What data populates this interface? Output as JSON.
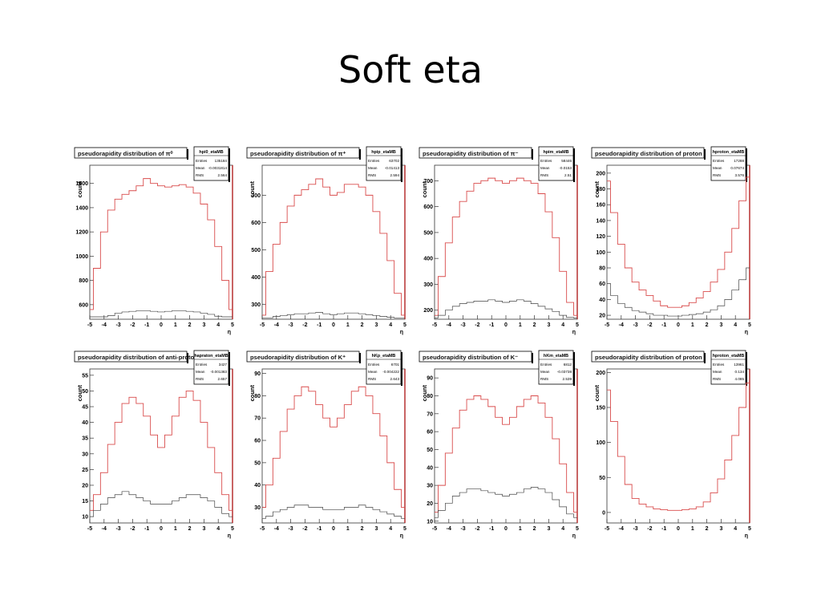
{
  "slide": {
    "title": "Soft eta"
  },
  "chart_data": [
    {
      "type": "histogram",
      "title": "pseudorapidity distribution of π⁰",
      "stats": {
        "name": "hpi0_etaMB",
        "entries": "135184",
        "mean": "-0.0031814",
        "rms": "2.564"
      },
      "xlabel": "η",
      "ylabel": "count",
      "xlim": [
        -5,
        5
      ],
      "ylim": [
        480,
        1750
      ],
      "xticks": [
        -5,
        -4,
        -3,
        -2,
        -1,
        0,
        1,
        2,
        3,
        4,
        5
      ],
      "yticks": [
        600,
        800,
        1000,
        1200,
        1400,
        1600
      ],
      "series": [
        {
          "color": "#d94c4c",
          "x": [
            -5,
            -4.5,
            -4,
            -3.5,
            -3,
            -2.5,
            -2,
            -1.5,
            -1,
            -0.5,
            0,
            0.5,
            1,
            1.5,
            2,
            2.5,
            3,
            3.5,
            4,
            4.5,
            5
          ],
          "y": [
            560,
            900,
            1200,
            1380,
            1470,
            1510,
            1540,
            1580,
            1640,
            1600,
            1580,
            1570,
            1580,
            1590,
            1570,
            1520,
            1430,
            1300,
            1080,
            800,
            560
          ]
        },
        {
          "color": "#444444",
          "x": [
            -5,
            -4.5,
            -4,
            -3.5,
            -3,
            -2.5,
            -2,
            -1.5,
            -1,
            -0.5,
            0,
            0.5,
            1,
            1.5,
            2,
            2.5,
            3,
            3.5,
            4,
            4.5,
            5
          ],
          "y": [
            500,
            500,
            500,
            510,
            530,
            540,
            545,
            550,
            550,
            545,
            540,
            545,
            550,
            550,
            545,
            540,
            530,
            520,
            505,
            500,
            500
          ]
        }
      ]
    },
    {
      "type": "histogram",
      "title": "pseudorapidity distribution of π⁺",
      "stats": {
        "name": "hpip_etaMB",
        "entries": "63702",
        "mean": "-0.01413",
        "rms": "2.594"
      },
      "xlabel": "η",
      "ylabel": "count",
      "xlim": [
        -5,
        5
      ],
      "ylim": [
        245,
        810
      ],
      "xticks": [
        -5,
        -4,
        -3,
        -2,
        -1,
        0,
        1,
        2,
        3,
        4,
        5
      ],
      "yticks": [
        300,
        400,
        500,
        600,
        700
      ],
      "series": [
        {
          "color": "#d94c4c",
          "x": [
            -5,
            -4.5,
            -4,
            -3.5,
            -3,
            -2.5,
            -2,
            -1.5,
            -1,
            -0.5,
            0,
            0.5,
            1,
            1.5,
            2,
            2.5,
            3,
            3.5,
            4,
            4.5,
            5
          ],
          "y": [
            260,
            420,
            520,
            600,
            660,
            700,
            720,
            740,
            760,
            730,
            700,
            710,
            740,
            740,
            730,
            700,
            640,
            560,
            460,
            340,
            260
          ]
        },
        {
          "color": "#444444",
          "x": [
            -5,
            -4.5,
            -4,
            -3.5,
            -3,
            -2.5,
            -2,
            -1.5,
            -1,
            -0.5,
            0,
            0.5,
            1,
            1.5,
            2,
            2.5,
            3,
            3.5,
            4,
            4.5,
            5
          ],
          "y": [
            250,
            250,
            255,
            258,
            262,
            265,
            265,
            268,
            270,
            265,
            262,
            265,
            268,
            268,
            265,
            262,
            258,
            255,
            252,
            250,
            250
          ]
        }
      ]
    },
    {
      "type": "histogram",
      "title": "pseudorapidity distribution of π⁻",
      "stats": {
        "name": "hpim_etaMB",
        "entries": "58446",
        "mean": "-0.0153",
        "rms": "2.51"
      },
      "xlabel": "η",
      "ylabel": "count",
      "xlim": [
        -5,
        5
      ],
      "ylim": [
        165,
        760
      ],
      "xticks": [
        -5,
        -4,
        -3,
        -2,
        -1,
        0,
        1,
        2,
        3,
        4,
        5
      ],
      "yticks": [
        200,
        300,
        400,
        500,
        600,
        700
      ],
      "series": [
        {
          "color": "#d94c4c",
          "x": [
            -5,
            -4.5,
            -4,
            -3.5,
            -3,
            -2.5,
            -2,
            -1.5,
            -1,
            -0.5,
            0,
            0.5,
            1,
            1.5,
            2,
            2.5,
            3,
            3.5,
            4,
            4.5,
            5
          ],
          "y": [
            180,
            330,
            460,
            560,
            620,
            660,
            690,
            700,
            710,
            700,
            690,
            700,
            710,
            700,
            690,
            650,
            580,
            480,
            350,
            230,
            180
          ]
        },
        {
          "color": "#444444",
          "x": [
            -5,
            -4.5,
            -4,
            -3.5,
            -3,
            -2.5,
            -2,
            -1.5,
            -1,
            -0.5,
            0,
            0.5,
            1,
            1.5,
            2,
            2.5,
            3,
            3.5,
            4,
            4.5,
            5
          ],
          "y": [
            170,
            180,
            200,
            215,
            225,
            230,
            235,
            235,
            240,
            235,
            230,
            235,
            240,
            235,
            225,
            215,
            205,
            195,
            180,
            172,
            170
          ]
        }
      ]
    },
    {
      "type": "histogram",
      "title": "pseudorapidity distribution of proton",
      "stats": {
        "name": "hproton_etaMB",
        "entries": "17288",
        "mean": "0.07674",
        "rms": "3.576"
      },
      "xlabel": "η",
      "ylabel": "count",
      "xlim": [
        -5,
        5
      ],
      "ylim": [
        15,
        210
      ],
      "xticks": [
        -5,
        -4,
        -3,
        -2,
        -1,
        0,
        1,
        2,
        3,
        4,
        5
      ],
      "yticks": [
        20,
        40,
        60,
        80,
        100,
        120,
        140,
        160,
        180,
        200
      ],
      "series": [
        {
          "color": "#d94c4c",
          "x": [
            -5,
            -4.5,
            -4,
            -3.5,
            -3,
            -2.5,
            -2,
            -1.5,
            -1,
            -0.5,
            0,
            0.5,
            1,
            1.5,
            2,
            2.5,
            3,
            3.5,
            4,
            4.5,
            5
          ],
          "y": [
            190,
            150,
            110,
            80,
            62,
            52,
            45,
            38,
            32,
            30,
            30,
            32,
            36,
            42,
            50,
            62,
            78,
            100,
            130,
            165,
            195
          ]
        },
        {
          "color": "#444444",
          "x": [
            -5,
            -4.5,
            -4,
            -3.5,
            -3,
            -2.5,
            -2,
            -1.5,
            -1,
            -0.5,
            0,
            0.5,
            1,
            1.5,
            2,
            2.5,
            3,
            3.5,
            4,
            4.5,
            5
          ],
          "y": [
            60,
            45,
            35,
            30,
            26,
            24,
            22,
            20,
            20,
            19,
            19,
            20,
            21,
            22,
            24,
            27,
            32,
            40,
            52,
            65,
            80
          ]
        }
      ]
    },
    {
      "type": "histogram",
      "title": "pseudorapidity distribution of anti-proton",
      "stats": {
        "name": "hapraton_etaMB",
        "entries": "3427",
        "mean": "-0.001383",
        "rms": "2.657"
      },
      "xlabel": "η",
      "ylabel": "count",
      "xlim": [
        -5,
        5
      ],
      "ylim": [
        8,
        57
      ],
      "xticks": [
        -5,
        -4,
        -3,
        -2,
        -1,
        0,
        1,
        2,
        3,
        4,
        5
      ],
      "yticks": [
        10,
        15,
        20,
        25,
        30,
        35,
        40,
        45,
        50,
        55
      ],
      "series": [
        {
          "color": "#d94c4c",
          "x": [
            -5,
            -4.5,
            -4,
            -3.5,
            -3,
            -2.5,
            -2,
            -1.5,
            -1,
            -0.5,
            0,
            0.5,
            1,
            1.5,
            2,
            2.5,
            3,
            3.5,
            4,
            4.5,
            5
          ],
          "y": [
            12,
            17,
            24,
            33,
            40,
            46,
            48,
            46,
            42,
            36,
            32,
            36,
            42,
            48,
            50,
            47,
            40,
            32,
            24,
            17,
            12
          ]
        },
        {
          "color": "#444444",
          "x": [
            -5,
            -4.5,
            -4,
            -3.5,
            -3,
            -2.5,
            -2,
            -1.5,
            -1,
            -0.5,
            0,
            0.5,
            1,
            1.5,
            2,
            2.5,
            3,
            3.5,
            4,
            4.5,
            5
          ],
          "y": [
            10,
            12,
            14,
            16,
            17,
            18,
            17,
            16,
            15,
            14,
            14,
            14,
            15,
            16,
            17,
            17,
            16,
            15,
            13,
            11,
            10
          ]
        }
      ]
    },
    {
      "type": "histogram",
      "title": "pseudorapidity distribution of K⁺",
      "stats": {
        "name": "hKp_etaMB",
        "entries": "6701",
        "mean": "-0.004222",
        "rms": "2.643"
      },
      "xlabel": "η",
      "ylabel": "count",
      "xlim": [
        -5,
        5
      ],
      "ylim": [
        23,
        92
      ],
      "xticks": [
        -5,
        -4,
        -3,
        -2,
        -1,
        0,
        1,
        2,
        3,
        4,
        5
      ],
      "yticks": [
        30,
        40,
        50,
        60,
        70,
        80,
        90
      ],
      "series": [
        {
          "color": "#d94c4c",
          "x": [
            -5,
            -4.5,
            -4,
            -3.5,
            -3,
            -2.5,
            -2,
            -1.5,
            -1,
            -0.5,
            0,
            0.5,
            1,
            1.5,
            2,
            2.5,
            3,
            3.5,
            4,
            4.5,
            5
          ],
          "y": [
            30,
            40,
            52,
            64,
            74,
            80,
            84,
            82,
            76,
            70,
            66,
            70,
            76,
            82,
            84,
            80,
            72,
            62,
            50,
            38,
            30
          ]
        },
        {
          "color": "#444444",
          "x": [
            -5,
            -4.5,
            -4,
            -3.5,
            -3,
            -2.5,
            -2,
            -1.5,
            -1,
            -0.5,
            0,
            0.5,
            1,
            1.5,
            2,
            2.5,
            3,
            3.5,
            4,
            4.5,
            5
          ],
          "y": [
            25,
            26,
            28,
            29,
            30,
            31,
            31,
            30,
            30,
            29,
            29,
            29,
            30,
            30,
            31,
            30,
            29,
            28,
            27,
            26,
            25
          ]
        }
      ]
    },
    {
      "type": "histogram",
      "title": "pseudorapidity distribution of K⁻",
      "stats": {
        "name": "hKm_etaMB",
        "entries": "6812",
        "mean": "-0.03738",
        "rms": "2.539"
      },
      "xlabel": "η",
      "ylabel": "count",
      "xlim": [
        -5,
        5
      ],
      "ylim": [
        9,
        95
      ],
      "xticks": [
        -5,
        -4,
        -3,
        -2,
        -1,
        0,
        1,
        2,
        3,
        4,
        5
      ],
      "yticks": [
        10,
        20,
        30,
        40,
        50,
        60,
        70,
        80,
        90
      ],
      "series": [
        {
          "color": "#d94c4c",
          "x": [
            -5,
            -4.5,
            -4,
            -3.5,
            -3,
            -2.5,
            -2,
            -1.5,
            -1,
            -0.5,
            0,
            0.5,
            1,
            1.5,
            2,
            2.5,
            3,
            3.5,
            4,
            4.5,
            5
          ],
          "y": [
            15,
            30,
            48,
            62,
            72,
            78,
            80,
            78,
            74,
            68,
            64,
            68,
            74,
            78,
            80,
            76,
            68,
            56,
            42,
            26,
            15
          ]
        },
        {
          "color": "#444444",
          "x": [
            -5,
            -4.5,
            -4,
            -3.5,
            -3,
            -2.5,
            -2,
            -1.5,
            -1,
            -0.5,
            0,
            0.5,
            1,
            1.5,
            2,
            2.5,
            3,
            3.5,
            4,
            4.5,
            5
          ],
          "y": [
            12,
            16,
            20,
            24,
            26,
            28,
            28,
            27,
            26,
            25,
            24,
            25,
            26,
            28,
            29,
            28,
            26,
            22,
            18,
            14,
            12
          ]
        }
      ]
    },
    {
      "type": "histogram",
      "title": "pseudorapidity distribution of proton",
      "stats": {
        "name": "hproton_etaMB",
        "entries": "13961",
        "mean": "0.134",
        "rms": "4.085"
      },
      "xlabel": "η",
      "ylabel": "count",
      "xlim": [
        -5,
        5
      ],
      "ylim": [
        -15,
        205
      ],
      "xticks": [
        -5,
        -4,
        -3,
        -2,
        -1,
        0,
        1,
        2,
        3,
        4,
        5
      ],
      "yticks": [
        0,
        50,
        100,
        150,
        200
      ],
      "series": [
        {
          "color": "#d94c4c",
          "x": [
            -5,
            -4.5,
            -4,
            -3.5,
            -3,
            -2.5,
            -2,
            -1.5,
            -1,
            -0.5,
            0,
            0.5,
            1,
            1.5,
            2,
            2.5,
            3,
            3.5,
            4,
            4.5,
            5
          ],
          "y": [
            175,
            130,
            80,
            40,
            20,
            12,
            8,
            5,
            4,
            3,
            3,
            4,
            5,
            8,
            15,
            28,
            48,
            75,
            110,
            150,
            185
          ]
        }
      ]
    }
  ]
}
